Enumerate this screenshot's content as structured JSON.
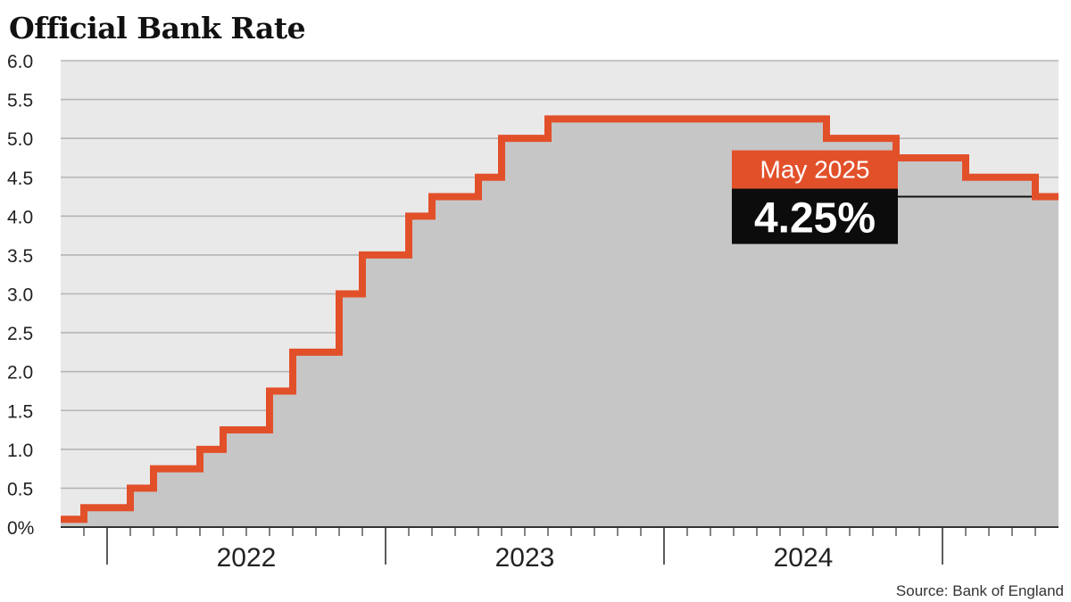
{
  "chart_data": {
    "type": "line",
    "title": "Official Bank Rate",
    "step": true,
    "x_unit": "month",
    "x_start": "2021-11",
    "x_end": "2025-05",
    "ylim": [
      0,
      6.0
    ],
    "yticks": [
      0,
      0.5,
      1.0,
      1.5,
      2.0,
      2.5,
      3.0,
      3.5,
      4.0,
      4.5,
      5.0,
      5.5,
      6.0
    ],
    "ytick_labels": [
      "0%",
      "0.5",
      "1.0",
      "1.5",
      "2.0",
      "2.5",
      "3.0",
      "3.5",
      "4.0",
      "4.5",
      "5.0",
      "5.5",
      "6.0"
    ],
    "x_year_labels": [
      "2022",
      "2023",
      "2024"
    ],
    "grid": true,
    "fill_under": true,
    "series": [
      {
        "name": "",
        "points": [
          {
            "date": "2021-11",
            "rate": 0.1
          },
          {
            "date": "2021-12",
            "rate": 0.25
          },
          {
            "date": "2022-02",
            "rate": 0.5
          },
          {
            "date": "2022-03",
            "rate": 0.75
          },
          {
            "date": "2022-05",
            "rate": 1.0
          },
          {
            "date": "2022-06",
            "rate": 1.25
          },
          {
            "date": "2022-08",
            "rate": 1.75
          },
          {
            "date": "2022-09",
            "rate": 2.25
          },
          {
            "date": "2022-11",
            "rate": 3.0
          },
          {
            "date": "2022-12",
            "rate": 3.5
          },
          {
            "date": "2023-02",
            "rate": 4.0
          },
          {
            "date": "2023-03",
            "rate": 4.25
          },
          {
            "date": "2023-05",
            "rate": 4.5
          },
          {
            "date": "2023-06",
            "rate": 5.0
          },
          {
            "date": "2023-08",
            "rate": 5.25
          },
          {
            "date": "2024-08",
            "rate": 5.0
          },
          {
            "date": "2024-11",
            "rate": 4.75
          },
          {
            "date": "2025-02",
            "rate": 4.5
          },
          {
            "date": "2025-05",
            "rate": 4.25
          }
        ]
      }
    ],
    "annotation": {
      "label": "May 2025",
      "value_text": "4.25%",
      "value": 4.25
    },
    "source": "Source: Bank of England",
    "colors": {
      "line": "#e2502a",
      "fill": "#c6c6c6",
      "plot_bg": "#e9e9e9",
      "grid": "#b5b5b5",
      "callout_date_bg": "#e2502a",
      "callout_value_bg": "#0c0c0c"
    }
  }
}
